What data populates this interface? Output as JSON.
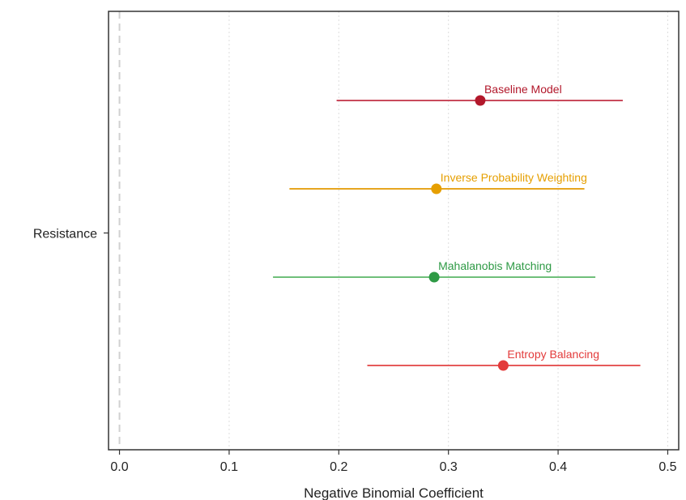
{
  "chart_data": {
    "type": "scatter",
    "subtype": "coefficient-plot",
    "title": "",
    "xlabel": "Negative Binomial Coefficient",
    "ylabel": "",
    "xlim": [
      -0.01,
      0.51
    ],
    "xticks": [
      0.0,
      0.1,
      0.2,
      0.3,
      0.4,
      0.5
    ],
    "xtick_labels": [
      "0.0",
      "0.1",
      "0.2",
      "0.3",
      "0.4",
      "0.5"
    ],
    "categories": [
      "Resistance"
    ],
    "grid": {
      "x": true,
      "y": false
    },
    "reference_line": {
      "x": 0.0,
      "style": "dashed"
    },
    "legend": "none",
    "series": [
      {
        "name": "Baseline Model",
        "estimate": 0.329,
        "ci_low": 0.198,
        "ci_high": 0.459,
        "color": "#b2182b",
        "line_color": "#c94a5c"
      },
      {
        "name": "Inverse Probability Weighting",
        "estimate": 0.289,
        "ci_low": 0.155,
        "ci_high": 0.424,
        "color": "#e69f00",
        "line_color": "#e6a520"
      },
      {
        "name": "Mahalanobis Matching",
        "estimate": 0.287,
        "ci_low": 0.14,
        "ci_high": 0.434,
        "color": "#2e9a45",
        "line_color": "#6fbf7a"
      },
      {
        "name": "Entropy Balancing",
        "estimate": 0.35,
        "ci_low": 0.226,
        "ci_high": 0.475,
        "color": "#e33b3b",
        "line_color": "#e65a5a"
      }
    ]
  }
}
